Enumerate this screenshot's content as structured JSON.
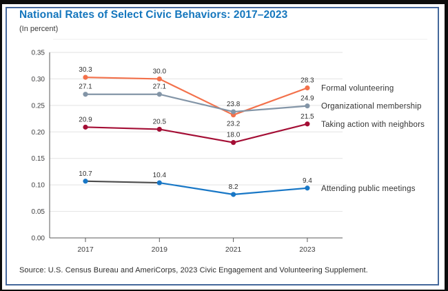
{
  "page": {
    "title": "National Rates of Select Civic Behaviors: 2017–2023",
    "subtitle": "(In percent)",
    "source": "Source: U.S. Census Bureau and AmeriCorps, 2023 Civic Engagement and Volunteering Supplement.",
    "title_color": "#1476BD",
    "border_color": "#44679B"
  },
  "chart_data": {
    "type": "line",
    "title": "National Rates of Select Civic Behaviors: 2017–2023",
    "subtitle": "(In percent)",
    "unit": "percent",
    "categories": [
      "2017",
      "2019",
      "2021",
      "2023"
    ],
    "axis": {
      "ymin": 0,
      "ymax": 0.35,
      "ystep": 0.05,
      "tick_format_decimals": 2
    },
    "grid": true,
    "legend_position": "right-of-last-point",
    "series": [
      {
        "name": "Formal volunteering",
        "values": [
          30.3,
          30.0,
          23.2,
          28.3
        ],
        "color": "#F3714B",
        "label_below": [
          false,
          false,
          true,
          false
        ]
      },
      {
        "name": "Organizational membership",
        "values": [
          27.1,
          27.1,
          23.8,
          24.9
        ],
        "color": "#8395A7",
        "label_below": [
          false,
          false,
          false,
          false
        ]
      },
      {
        "name": "Taking action with neighbors",
        "values": [
          20.9,
          20.5,
          18.0,
          21.5
        ],
        "color": "#A40E35",
        "label_below": [
          false,
          false,
          false,
          false
        ]
      },
      {
        "name": "Attending public meetings",
        "values": [
          10.7,
          10.4,
          8.2,
          9.4
        ],
        "color": "#1877C6",
        "segment_colors": [
          "#4B4B4B",
          null,
          null
        ],
        "label_below": [
          false,
          false,
          false,
          false
        ]
      }
    ],
    "style": {
      "grid_color": "#E2E2E2",
      "axis_color": "#5A5A5A",
      "tick_label_color": "#3D3D3E",
      "data_label_color": "#2F2F2F",
      "legend_label_color": "#333333"
    }
  }
}
